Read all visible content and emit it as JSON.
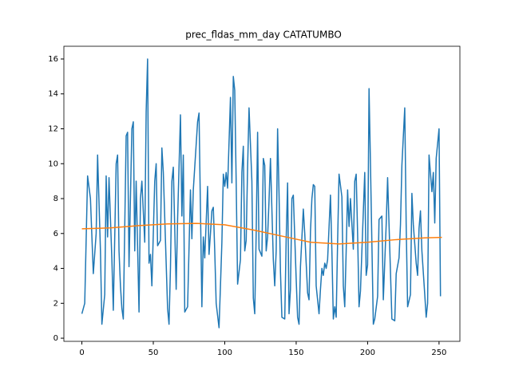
{
  "chart_data": {
    "type": "line",
    "title": "prec_fldas_mm_day CATATUMBO",
    "xlim": [
      -12.6,
      264.6
    ],
    "ylim": [
      -0.18,
      16.73
    ],
    "xticks": [
      0,
      50,
      100,
      150,
      200,
      250
    ],
    "yticks": [
      0,
      2,
      4,
      6,
      8,
      10,
      12,
      14,
      16
    ],
    "series": [
      {
        "color": "#1f77b4",
        "x": [
          0,
          2,
          4,
          6,
          8,
          10,
          11,
          13,
          14,
          16,
          17,
          18,
          19,
          21,
          22,
          24,
          25,
          26,
          27,
          28,
          29,
          31,
          32,
          33,
          35,
          36,
          37,
          38,
          40,
          41,
          42,
          44,
          45,
          46,
          47,
          48,
          49,
          51,
          52,
          53,
          55,
          56,
          57,
          60,
          61,
          62,
          63,
          64,
          66,
          67,
          69,
          70,
          71,
          72,
          74,
          76,
          77,
          78,
          81,
          82,
          83,
          84,
          85,
          86,
          88,
          89,
          90,
          91,
          92,
          93,
          94,
          96,
          97,
          98,
          99,
          100,
          101,
          102,
          104,
          105,
          106,
          107,
          108,
          109,
          111,
          112,
          113,
          114,
          115,
          116,
          117,
          119,
          120,
          121,
          122,
          123,
          124,
          126,
          127,
          128,
          129,
          130,
          131,
          132,
          134,
          135,
          136,
          137,
          138,
          139,
          140,
          142,
          143,
          144,
          145,
          146,
          147,
          148,
          150,
          151,
          152,
          153,
          155,
          156,
          158,
          159,
          160,
          161,
          162,
          163,
          164,
          166,
          167,
          168,
          169,
          170,
          171,
          172,
          174,
          175,
          176,
          177,
          178,
          179,
          180,
          182,
          183,
          184,
          185,
          186,
          187,
          188,
          190,
          191,
          192,
          193,
          194,
          195,
          196,
          198,
          199,
          200,
          201,
          202,
          204,
          205,
          207,
          208,
          210,
          211,
          213,
          214,
          216,
          217,
          219,
          220,
          222,
          223,
          224,
          226,
          227,
          228,
          230,
          231,
          232,
          234,
          235,
          236,
          237,
          238,
          240,
          241,
          242,
          243,
          245,
          246,
          247,
          248,
          250,
          251
        ],
        "values": [
          1.4,
          2.0,
          9.3,
          8.0,
          3.7,
          6,
          10.5,
          5,
          0.8,
          2.5,
          9.3,
          5.8,
          9.2,
          4.5,
          1.6,
          10,
          10.5,
          5,
          3,
          1.7,
          1.1,
          11.6,
          11.8,
          4.1,
          12,
          12.4,
          5,
          9,
          1.5,
          8,
          9,
          5.5,
          13,
          16,
          4.3,
          4.8,
          3,
          9,
          10,
          5.3,
          5.6,
          10.9,
          9.5,
          1.7,
          0.8,
          4,
          9,
          9.8,
          2.8,
          6.8,
          12.8,
          7,
          10.5,
          1.5,
          1.8,
          8.5,
          5.7,
          8.5,
          12.4,
          12.9,
          7.4,
          1.8,
          5.8,
          4.6,
          8.7,
          4.8,
          6,
          7.3,
          7.5,
          5,
          2,
          0.6,
          3,
          5.5,
          9.4,
          8.7,
          9.5,
          8.6,
          13.8,
          8.9,
          15,
          14.2,
          9,
          3.1,
          4.5,
          9.5,
          11,
          5,
          5.6,
          9.8,
          13.2,
          9,
          2.3,
          1.4,
          6,
          11.8,
          5.1,
          4.7,
          10.3,
          9.9,
          5,
          5.8,
          7.9,
          10.3,
          4.5,
          3,
          5,
          12,
          8.3,
          3.8,
          1.2,
          1.1,
          5.7,
          8.9,
          1.4,
          2.8,
          8,
          8.2,
          3.4,
          1.2,
          0.8,
          4.1,
          7.4,
          6,
          2.6,
          2.2,
          6.1,
          8,
          8.8,
          8.7,
          3,
          1.4,
          2.8,
          4,
          3.6,
          4.3,
          4,
          4.5,
          8.2,
          5,
          1.1,
          1.8,
          1.2,
          5.5,
          9.4,
          8.1,
          3,
          1.8,
          5,
          8.5,
          6.4,
          8,
          5.1,
          9,
          9.4,
          6,
          1.8,
          2.7,
          5,
          9.5,
          3.6,
          4.2,
          14.3,
          10,
          0.8,
          1.1,
          2.4,
          6.8,
          7,
          2.2,
          6.5,
          9.2,
          3.8,
          1.1,
          1,
          3.7,
          4.6,
          6.5,
          9.9,
          13.2,
          6.5,
          1.8,
          2.5,
          8.3,
          6.5,
          4.3,
          3.6,
          6.3,
          7.3,
          5,
          2.5,
          1.2,
          2,
          10.5,
          8.4,
          9.5,
          6.6,
          10.3,
          12,
          2.4
        ]
      },
      {
        "color": "#ff7f0e",
        "x": [
          0,
          20,
          40,
          60,
          80,
          100,
          120,
          140,
          160,
          180,
          200,
          220,
          240,
          252
        ],
        "values": [
          6.27,
          6.32,
          6.45,
          6.55,
          6.58,
          6.5,
          6.2,
          5.85,
          5.5,
          5.4,
          5.5,
          5.65,
          5.75,
          5.78
        ]
      }
    ]
  }
}
